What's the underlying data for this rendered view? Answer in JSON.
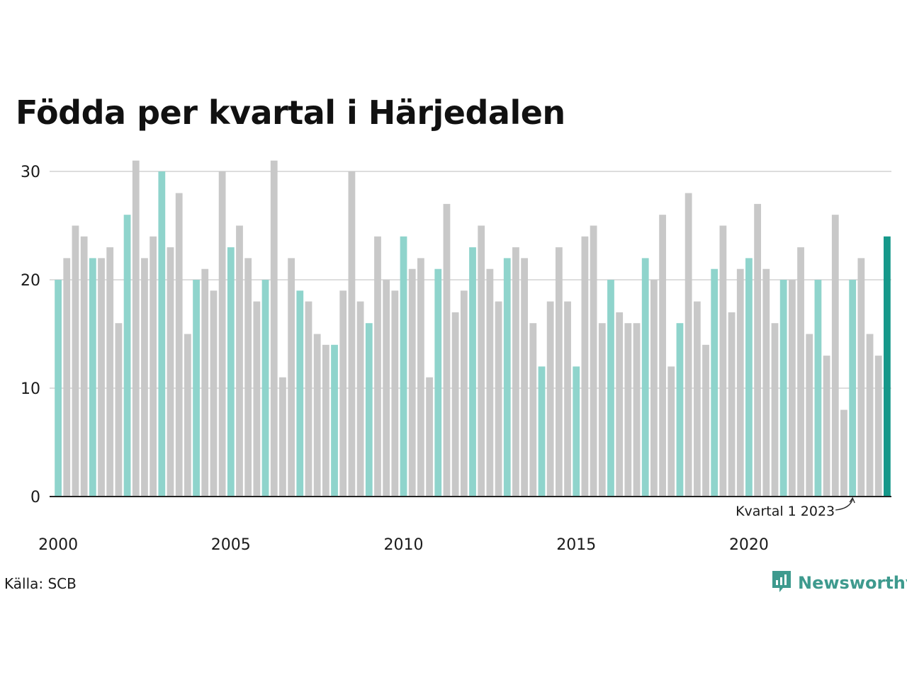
{
  "title": "Födda per kvartal i Härjedalen",
  "source": "Källa: SCB",
  "brand": {
    "name": "Newsworthy",
    "color": "#3e9a8e",
    "icon": "newsworthy-logo-icon"
  },
  "colors": {
    "q1": "#8fd4cc",
    "other": "#c8c8c8",
    "latest": "#16988a",
    "grid": "#dddddd",
    "axis": "#222222"
  },
  "chart_data": {
    "type": "bar",
    "title": "Födda per kvartal i Härjedalen",
    "xlabel": "",
    "ylabel": "",
    "ylim": [
      0,
      31
    ],
    "yticks": [
      0,
      10,
      20,
      30
    ],
    "grid": true,
    "x_tick_labels": [
      "2000",
      "2005",
      "2010",
      "2015",
      "2020"
    ],
    "highlight": "Kvartal 1 highlighted",
    "categories": [
      "2000 K1",
      "2000 K2",
      "2000 K3",
      "2000 K4",
      "2001 K1",
      "2001 K2",
      "2001 K3",
      "2001 K4",
      "2002 K1",
      "2002 K2",
      "2002 K3",
      "2002 K4",
      "2003 K1",
      "2003 K2",
      "2003 K3",
      "2003 K4",
      "2004 K1",
      "2004 K2",
      "2004 K3",
      "2004 K4",
      "2005 K1",
      "2005 K2",
      "2005 K3",
      "2005 K4",
      "2006 K1",
      "2006 K2",
      "2006 K3",
      "2006 K4",
      "2007 K1",
      "2007 K2",
      "2007 K3",
      "2007 K4",
      "2008 K1",
      "2008 K2",
      "2008 K3",
      "2008 K4",
      "2009 K1",
      "2009 K2",
      "2009 K3",
      "2009 K4",
      "2010 K1",
      "2010 K2",
      "2010 K3",
      "2010 K4",
      "2011 K1",
      "2011 K2",
      "2011 K3",
      "2011 K4",
      "2012 K1",
      "2012 K2",
      "2012 K3",
      "2012 K4",
      "2013 K1",
      "2013 K2",
      "2013 K3",
      "2013 K4",
      "2014 K1",
      "2014 K2",
      "2014 K3",
      "2014 K4",
      "2015 K1",
      "2015 K2",
      "2015 K3",
      "2015 K4",
      "2016 K1",
      "2016 K2",
      "2016 K3",
      "2016 K4",
      "2017 K1",
      "2017 K2",
      "2017 K3",
      "2017 K4",
      "2018 K1",
      "2018 K2",
      "2018 K3",
      "2018 K4",
      "2019 K1",
      "2019 K2",
      "2019 K3",
      "2019 K4",
      "2020 K1",
      "2020 K2",
      "2020 K3",
      "2020 K4",
      "2021 K1",
      "2021 K2",
      "2021 K3",
      "2021 K4",
      "2022 K1",
      "2022 K2",
      "2022 K3",
      "2022 K4",
      "2023 K1",
      "2023 K2",
      "2023 K3",
      "2023 K4",
      "2024 K1"
    ],
    "values": [
      20,
      22,
      25,
      24,
      22,
      22,
      23,
      16,
      26,
      31,
      22,
      24,
      30,
      23,
      28,
      15,
      20,
      21,
      19,
      30,
      23,
      25,
      22,
      18,
      20,
      31,
      11,
      22,
      19,
      18,
      15,
      14,
      14,
      19,
      30,
      18,
      16,
      24,
      20,
      19,
      24,
      21,
      22,
      11,
      21,
      27,
      17,
      19,
      23,
      25,
      21,
      18,
      22,
      23,
      22,
      16,
      12,
      18,
      23,
      18,
      12,
      24,
      25,
      16,
      20,
      17,
      16,
      16,
      22,
      20,
      26,
      12,
      16,
      28,
      18,
      14,
      21,
      25,
      17,
      21,
      22,
      27,
      21,
      16,
      20,
      20,
      23,
      15,
      20,
      13,
      26,
      8,
      20,
      22,
      15,
      13,
      24
    ],
    "annotation": {
      "text": "Kvartal 1 2023",
      "target": "2023 K1"
    }
  }
}
